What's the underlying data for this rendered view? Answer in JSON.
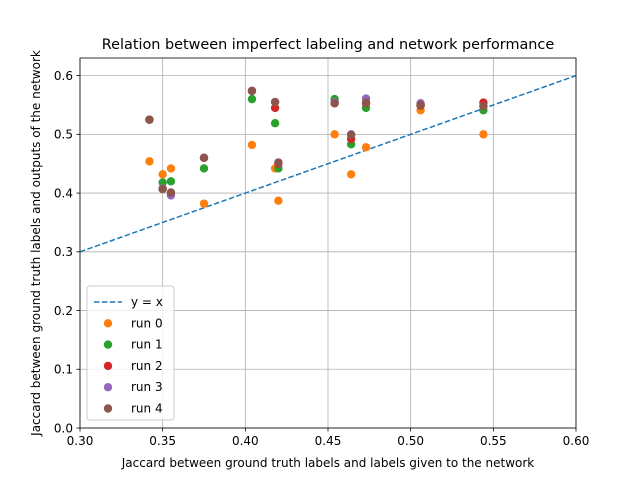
{
  "chart_data": {
    "type": "scatter",
    "title": "Relation between imperfect labeling and network performance",
    "xlabel": "Jaccard between ground truth labels and labels given to the network",
    "ylabel": "Jaccard between ground truth labels and outputs of the network",
    "xlim": [
      0.3,
      0.6
    ],
    "ylim": [
      0.0,
      0.63
    ],
    "xticks": [
      0.3,
      0.35,
      0.4,
      0.45,
      0.5,
      0.55,
      0.6
    ],
    "xtick_labels": [
      "0.30",
      "0.35",
      "0.40",
      "0.45",
      "0.50",
      "0.55",
      "0.60"
    ],
    "yticks": [
      0.0,
      0.1,
      0.2,
      0.3,
      0.4,
      0.5,
      0.6
    ],
    "ytick_labels": [
      "0.0",
      "0.1",
      "0.2",
      "0.3",
      "0.4",
      "0.5",
      "0.6"
    ],
    "grid": true,
    "legend_position": "lower-left",
    "reference_line": {
      "name": "y = x",
      "x": [
        0.3,
        0.6
      ],
      "y": [
        0.3,
        0.6
      ],
      "style": "dashed",
      "color": "#1f77b4"
    },
    "x": [
      0.342,
      0.35,
      0.355,
      0.375,
      0.404,
      0.418,
      0.42,
      0.454,
      0.464,
      0.473,
      0.506,
      0.544
    ],
    "series": [
      {
        "name": "run 0",
        "color": "#ff7f0e",
        "y": [
          0.454,
          0.432,
          0.442,
          0.382,
          0.482,
          0.442,
          0.387,
          0.5,
          0.432,
          0.478,
          0.541,
          0.5
        ]
      },
      {
        "name": "run 1",
        "color": "#2ca02c",
        "y": [
          0.525,
          0.418,
          0.42,
          0.442,
          0.56,
          0.519,
          0.442,
          0.56,
          0.483,
          0.545,
          0.549,
          0.541
        ]
      },
      {
        "name": "run 2",
        "color": "#d62728",
        "y": [
          0.525,
          0.407,
          0.4,
          0.46,
          0.574,
          0.545,
          0.45,
          0.553,
          0.492,
          0.553,
          0.549,
          0.554
        ]
      },
      {
        "name": "run 3",
        "color": "#9467bd",
        "y": [
          0.525,
          0.408,
          0.396,
          0.46,
          0.574,
          0.555,
          0.452,
          0.555,
          0.5,
          0.561,
          0.553,
          0.548
        ]
      },
      {
        "name": "run 4",
        "color": "#8c564b",
        "y": [
          0.525,
          0.407,
          0.401,
          0.46,
          0.574,
          0.555,
          0.452,
          0.553,
          0.499,
          0.554,
          0.55,
          0.548
        ]
      }
    ]
  }
}
